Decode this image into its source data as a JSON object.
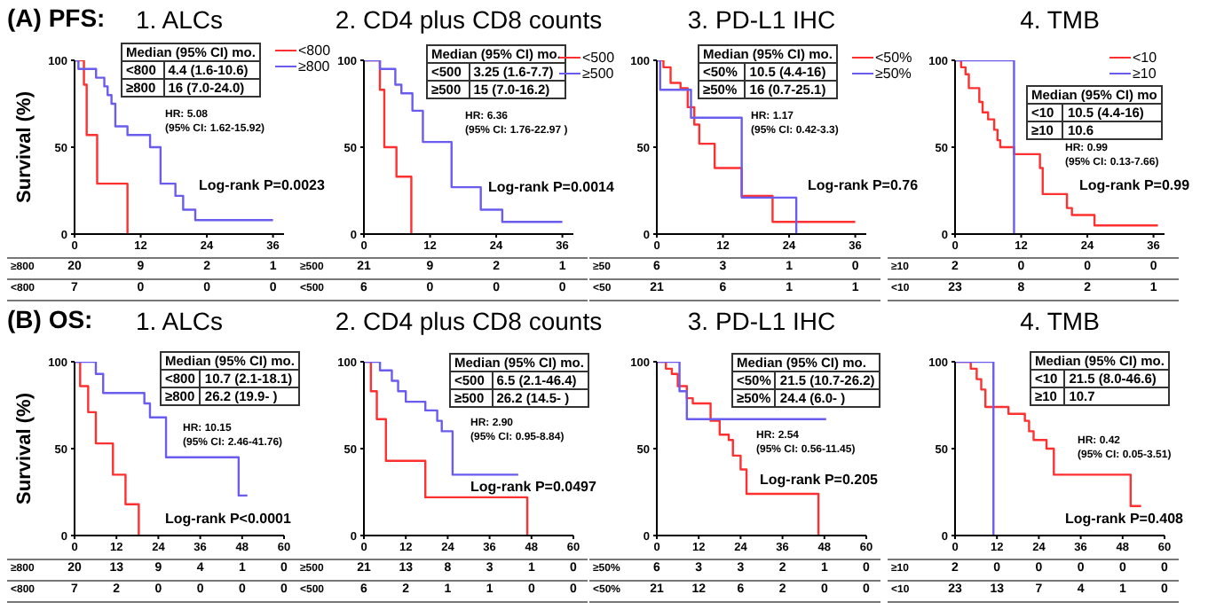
{
  "chart_data": [
    {
      "type": "step",
      "subtitle": "(A) PFS:",
      "title": "1. ALCs",
      "ylabel": "Survival (%)",
      "xlim": [
        0,
        38
      ],
      "xticks": [
        0,
        12,
        24,
        36
      ],
      "ylim": [
        0,
        100
      ],
      "yticks": [
        0,
        50,
        100
      ],
      "legend": "top right",
      "series": [
        {
          "name": "<800",
          "color": "#ff3030",
          "x": [
            0,
            1.7,
            2.2,
            4.1,
            9.6
          ],
          "values": [
            100,
            86,
            57,
            29,
            0
          ]
        },
        {
          "name": "≥800",
          "color": "#6b5cf0",
          "x": [
            0,
            0.7,
            3.9,
            5.4,
            6,
            6.7,
            7.4,
            9.6,
            13.7,
            15.6,
            18.3,
            19.7,
            21.9,
            36
          ],
          "values": [
            100,
            95,
            90,
            85,
            80,
            75,
            62,
            57,
            50,
            29,
            22,
            14,
            8,
            8
          ]
        }
      ],
      "annotations": [
        "Median (95% CI) mo.",
        "<800",
        "4.4 (1.6-10.6)",
        "≥800",
        "16 (7.0-24.0)",
        "HR: 5.08",
        "(95% CI: 1.62-15.92)",
        "Log-rank P=0.0023",
        "≥800 20 9 2 1",
        "<800 7 0 0 0"
      ]
    },
    {
      "type": "step",
      "title": "2. CD4 plus CD8 counts",
      "xlim": [
        0,
        38
      ],
      "xticks": [
        0,
        12,
        24,
        36
      ],
      "ylim": [
        0,
        100
      ],
      "yticks": [
        0,
        50,
        100
      ],
      "legend": "top right",
      "series": [
        {
          "name": "<500",
          "color": "#ff3030",
          "x": [
            0,
            2.9,
            3.7,
            5.9,
            8.6
          ],
          "values": [
            100,
            83,
            50,
            33,
            0
          ]
        },
        {
          "name": "≥500",
          "color": "#6b5cf0",
          "x": [
            0,
            2.9,
            5.7,
            6.8,
            8.8,
            10.7,
            15.9,
            21.2,
            25.1,
            36
          ],
          "values": [
            100,
            95,
            86,
            81,
            71,
            53,
            27,
            14,
            7,
            7
          ]
        }
      ],
      "annotations": [
        "Median (95% CI) mo.",
        "<500",
        "3.25 (1.6-7.7)",
        "≥500",
        "15 (7.0-16.2)",
        "HR: 6.36",
        "(95% CI: 1.76-22.97 )",
        "Log-rank P=0.0014",
        "≥500 21 9 2 1",
        "<500 6 0 0 0"
      ]
    },
    {
      "type": "step",
      "title": "3. PD-L1 IHC",
      "xlim": [
        0,
        38
      ],
      "xticks": [
        0,
        12,
        24,
        36
      ],
      "ylim": [
        0,
        100
      ],
      "yticks": [
        0,
        50,
        100
      ],
      "legend": "top right",
      "series": [
        {
          "name": "<50%",
          "color": "#ff3030",
          "x": [
            0,
            1.2,
            2.5,
            4.3,
            5.6,
            6.8,
            7.7,
            10.5,
            15.4,
            21,
            36
          ],
          "values": [
            100,
            96,
            87,
            84,
            73,
            63,
            52,
            38,
            22,
            7,
            7
          ]
        },
        {
          "name": "≥50%",
          "color": "#6b5cf0",
          "x": [
            0,
            0.6,
            6.2,
            15.4,
            25.3
          ],
          "values": [
            100,
            83,
            67,
            21,
            0
          ]
        }
      ],
      "annotations": [
        "Median (95% CI) mo.",
        "<50%",
        "10.5 (4.4-16)",
        "≥50%",
        "16 (0.7-25.1)",
        "HR: 1.17",
        "(95% CI: 0.42-3.3)",
        "Log-rank P=0.76",
        "≥50 6 3 1 0",
        "<50 21 6 1 1"
      ]
    },
    {
      "type": "step",
      "title": "4. TMB",
      "xlim": [
        0,
        38
      ],
      "xticks": [
        0,
        12,
        24,
        36
      ],
      "ylim": [
        0,
        100
      ],
      "yticks": [
        0,
        50,
        100
      ],
      "legend": "top right",
      "series": [
        {
          "name": "<10",
          "color": "#ff3030",
          "x": [
            0,
            1.1,
            1.9,
            2.5,
            4.4,
            5,
            6,
            7.1,
            7.7,
            8.2,
            10.7,
            15.4,
            15.9,
            20.3,
            21.2,
            25.3,
            36.8
          ],
          "values": [
            100,
            96,
            92,
            84,
            76,
            70,
            66,
            60,
            54,
            50,
            46,
            38,
            23,
            15,
            11,
            5,
            5
          ]
        },
        {
          "name": "≥10",
          "color": "#6b5cf0",
          "x": [
            0,
            10.7
          ],
          "values": [
            100,
            0
          ]
        }
      ],
      "annotations": [
        "Median (95% CI) mo",
        "<10",
        "10.5 (4.4-16)",
        "≥10",
        "10.6",
        "HR: 0.99",
        "(95% CI: 0.13-7.66)",
        "Log-rank P=0.99",
        "≥10 2 0 0 0",
        "<10 23 8 2 1"
      ]
    },
    {
      "type": "step",
      "subtitle": "(B) OS:",
      "title": "1. ALCs",
      "ylabel": "Survival (%)",
      "xlim": [
        0,
        60
      ],
      "xticks": [
        0,
        12,
        24,
        36,
        48,
        60
      ],
      "ylim": [
        0,
        100
      ],
      "yticks": [
        0,
        50,
        100
      ],
      "series": [
        {
          "color": "#ff3030",
          "x": [
            0,
            1.6,
            3.9,
            6.1,
            11,
            14.6,
            18.4
          ],
          "values": [
            100,
            86,
            71,
            53,
            35,
            18,
            0
          ]
        },
        {
          "color": "#6b5cf0",
          "x": [
            0,
            6.1,
            8.2,
            20,
            21.6,
            26.2,
            47,
            49.5
          ],
          "values": [
            100,
            93,
            82,
            76,
            68,
            45,
            23,
            23
          ]
        }
      ],
      "annotations": [
        "Median (95% CI) mo.",
        "<800",
        "10.7 (2.1-18.1)",
        "≥800",
        "26.2 (19.9- )",
        "HR: 10.15",
        "(95% CI: 2.46-41.76)",
        "Log-rank P<0.0001",
        "≥800 20 13 9 4 1 0",
        "<800 7 2 0 0 0 0"
      ]
    },
    {
      "type": "step",
      "title": "2. CD4 plus CD8 counts",
      "xlim": [
        0,
        60
      ],
      "xticks": [
        0,
        12,
        24,
        36,
        48,
        60
      ],
      "ylim": [
        0,
        100
      ],
      "yticks": [
        0,
        50,
        100
      ],
      "series": [
        {
          "color": "#ff3030",
          "x": [
            0,
            2,
            3.7,
            6.3,
            17.6,
            46.8
          ],
          "values": [
            100,
            83,
            67,
            43,
            22,
            0
          ]
        },
        {
          "color": "#6b5cf0",
          "x": [
            0,
            4.6,
            8,
            9.8,
            12,
            17.6,
            21,
            22.3,
            25.4,
            44.2
          ],
          "values": [
            100,
            95,
            89,
            83,
            77,
            72,
            66,
            60,
            35,
            35
          ]
        }
      ],
      "annotations": [
        "Median (95% CI) mo.",
        "<500",
        "6.5 (2.1-46.4)",
        "≥500",
        "26.2 (14.5- )",
        "HR: 2.90",
        "(95% CI: 0.95-8.84)",
        "Log-rank P=0.0497",
        "≥500 21 13 8 3 1 0",
        "<500 6 2 1 1 0 0"
      ]
    },
    {
      "type": "step",
      "title": "3. PD-L1 IHC",
      "xlim": [
        0,
        60
      ],
      "xticks": [
        0,
        12,
        24,
        36,
        48,
        60
      ],
      "ylim": [
        0,
        100
      ],
      "yticks": [
        0,
        50,
        100
      ],
      "series": [
        {
          "color": "#ff3030",
          "x": [
            0,
            2.6,
            4.3,
            6,
            8.6,
            10.3,
            15.4,
            18,
            20.6,
            21.8,
            24,
            25.7,
            46.3
          ],
          "values": [
            100,
            96,
            93,
            86,
            79,
            76,
            66,
            58,
            55,
            46,
            38,
            24,
            0
          ]
        },
        {
          "color": "#6b5cf0",
          "x": [
            0,
            6.5,
            8.6,
            48.5
          ],
          "values": [
            100,
            83,
            67,
            67
          ]
        }
      ],
      "annotations": [
        "Median (95% CI) mo.",
        "<50%",
        "21.5 (10.7-26.2)",
        "≥50%",
        "24.4 (6.0- )",
        "HR: 2.54",
        "(95% CI: 0.56-11.45)",
        "Log-rank P=0.205",
        "≥50% 6 3 3 2 1 0",
        "<50% 21 12 6 2 0 0"
      ]
    },
    {
      "type": "step",
      "title": "4. TMB",
      "xlim": [
        0,
        60
      ],
      "xticks": [
        0,
        12,
        24,
        36,
        48,
        60
      ],
      "ylim": [
        0,
        100
      ],
      "yticks": [
        0,
        50,
        100
      ],
      "series": [
        {
          "color": "#ff3030",
          "x": [
            0,
            4.5,
            6.2,
            7.5,
            8.7,
            15.3,
            20,
            21.2,
            22.5,
            26.2,
            28.3,
            50.3,
            53.3
          ],
          "values": [
            100,
            96,
            90,
            84,
            74,
            70,
            66,
            60,
            55,
            50,
            35,
            17,
            17
          ]
        },
        {
          "color": "#6b5cf0",
          "x": [
            0,
            11
          ],
          "values": [
            100,
            0
          ]
        }
      ],
      "annotations": [
        "Median (95% CI) mo.",
        "<10",
        "21.5 (8.0-46.6)",
        "≥10",
        "10.7",
        "HR: 0.42",
        "(95% CI: 0.05-3.51)",
        "Log-rank P=0.408",
        "≥10 2 0 0 0 0 0",
        "<10 23 13 7 4 1 0"
      ]
    }
  ]
}
